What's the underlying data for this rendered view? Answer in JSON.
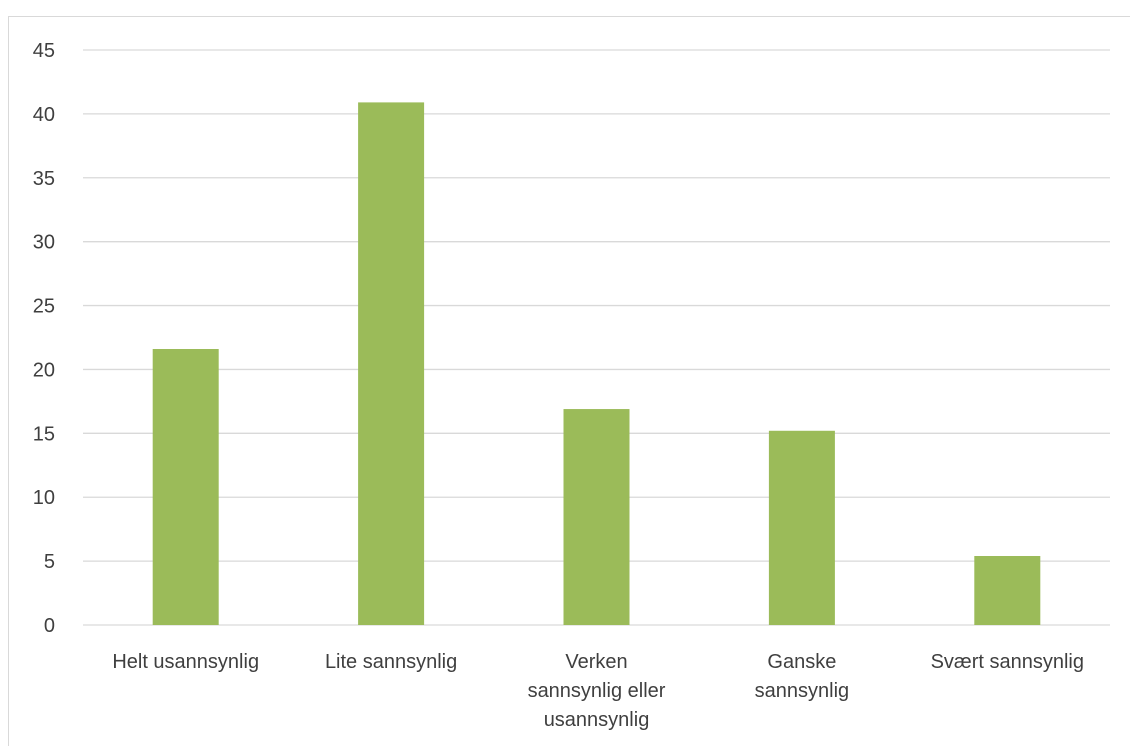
{
  "chart_data": {
    "type": "bar",
    "title": "",
    "xlabel": "",
    "ylabel": "",
    "categories": [
      [
        "Helt usannsynlig"
      ],
      [
        "Lite sannsynlig"
      ],
      [
        "Verken",
        "sannsynlig eller",
        "usannsynlig"
      ],
      [
        "Ganske",
        "sannsynlig"
      ],
      [
        "Svært sannsynlig"
      ]
    ],
    "values": [
      21.6,
      40.9,
      16.9,
      15.2,
      5.4
    ],
    "ylim": [
      0,
      45
    ],
    "yticks": [
      "0",
      "5",
      "10",
      "15",
      "20",
      "25",
      "30",
      "35",
      "40",
      "45"
    ],
    "grid": true,
    "bar_color": "#9bbb59",
    "grid_color": "#d9d9d9"
  }
}
